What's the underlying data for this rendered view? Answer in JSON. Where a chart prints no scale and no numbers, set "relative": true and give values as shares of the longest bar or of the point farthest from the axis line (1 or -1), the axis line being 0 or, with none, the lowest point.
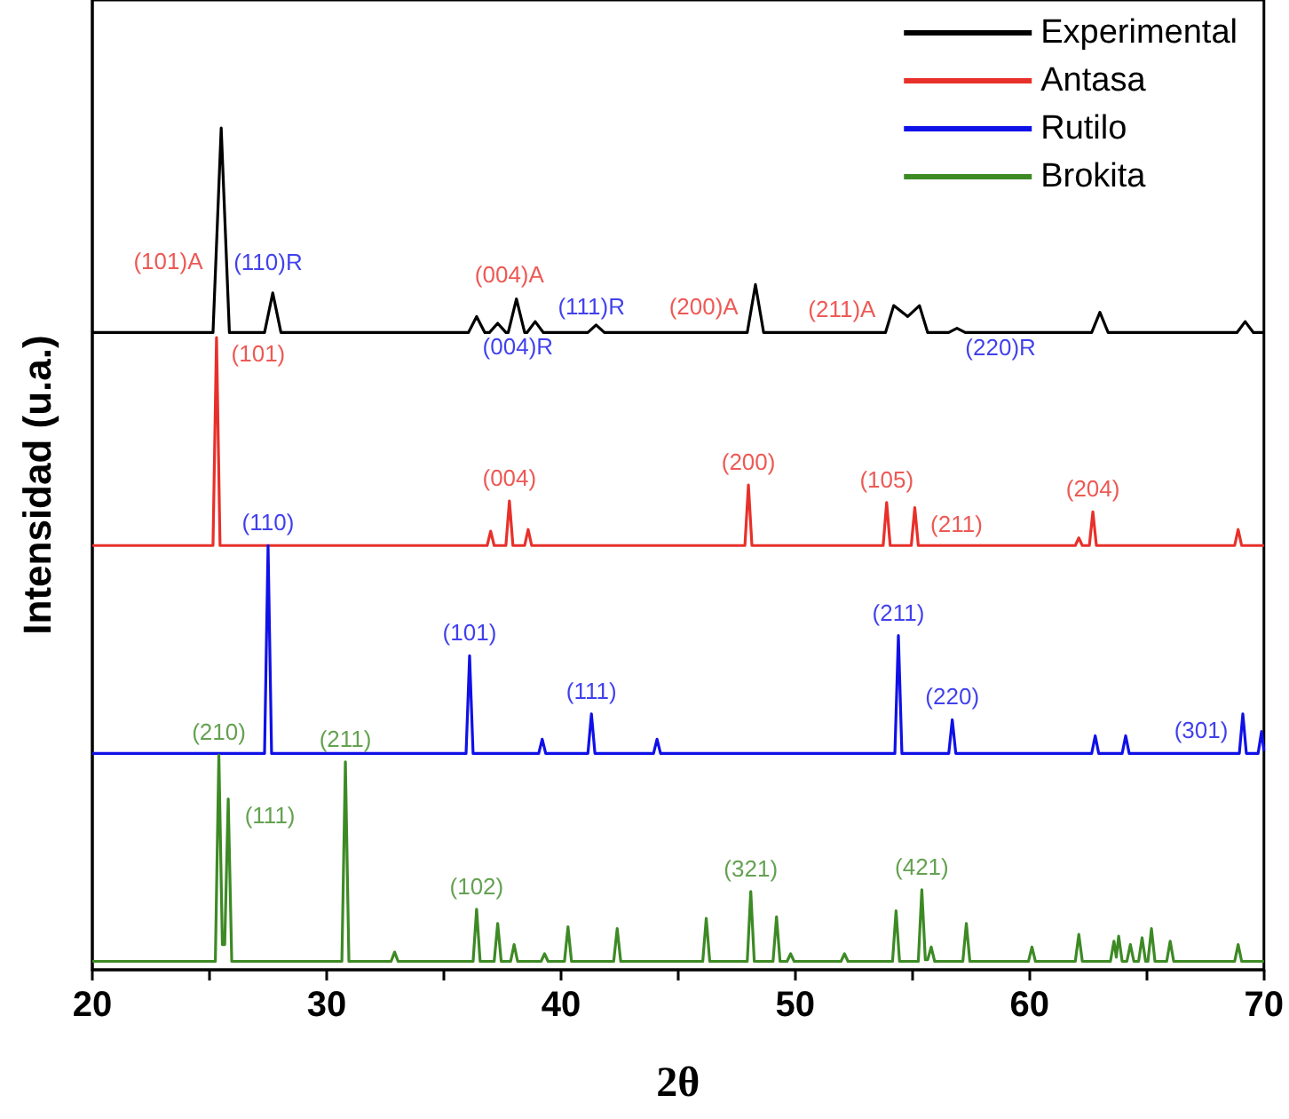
{
  "chart_data": {
    "type": "line",
    "relative": true,
    "xlabel": "2θ",
    "ylabel": "Intensidad (u.a.)",
    "xlim": [
      20,
      70
    ],
    "xticks": [
      20,
      {
        "value": 25,
        "label": null
      },
      30,
      {
        "value": 35,
        "label": null
      },
      40,
      {
        "value": 45,
        "label": null
      },
      50,
      {
        "value": 55,
        "label": null
      },
      60,
      {
        "value": 65,
        "label": null
      },
      70
    ],
    "legend": "top right",
    "grid": false,
    "marker": "none",
    "line_style": "solid",
    "series": [
      {
        "name": "Experimental",
        "color": "#000000",
        "x": [
          20,
          25.15,
          25.5,
          25.85,
          27.35,
          27.7,
          28.05,
          36.05,
          36.4,
          36.75,
          36.95,
          37.3,
          37.65,
          37.75,
          38.1,
          38.45,
          38.55,
          38.9,
          39.25,
          41.15,
          41.5,
          41.85,
          47.95,
          48.3,
          48.65,
          53.85,
          54.2,
          54.8,
          55.3,
          55.65,
          56.55,
          56.9,
          57.25,
          62.65,
          63.0,
          63.35,
          68.85,
          69.2,
          69.55,
          70
        ],
        "values": [
          0.757,
          0.757,
          1.0,
          0.757,
          0.757,
          0.804,
          0.757,
          0.757,
          0.776,
          0.757,
          0.757,
          0.768,
          0.757,
          0.757,
          0.797,
          0.757,
          0.757,
          0.77,
          0.757,
          0.757,
          0.766,
          0.757,
          0.757,
          0.814,
          0.757,
          0.757,
          0.789,
          0.776,
          0.789,
          0.757,
          0.757,
          0.762,
          0.757,
          0.757,
          0.781,
          0.757,
          0.757,
          0.77,
          0.757,
          0.757
        ]
      },
      {
        "name": "Antasa",
        "color": "#e8302a",
        "x": [
          20,
          25.15,
          25.3,
          25.45,
          36.85,
          37.0,
          37.15,
          37.65,
          37.8,
          37.95,
          38.45,
          38.6,
          38.75,
          47.85,
          48.0,
          48.15,
          53.75,
          53.9,
          54.05,
          54.95,
          55.1,
          55.25,
          61.95,
          62.1,
          62.25,
          62.55,
          62.7,
          62.85,
          68.75,
          68.9,
          69.05,
          70
        ],
        "values": [
          0.504,
          0.504,
          0.751,
          0.504,
          0.504,
          0.521,
          0.504,
          0.504,
          0.557,
          0.504,
          0.504,
          0.523,
          0.504,
          0.504,
          0.576,
          0.504,
          0.504,
          0.555,
          0.504,
          0.504,
          0.549,
          0.504,
          0.504,
          0.513,
          0.504,
          0.504,
          0.544,
          0.504,
          0.504,
          0.523,
          0.504,
          0.504
        ]
      },
      {
        "name": "Rutilo",
        "color": "#1010e8",
        "x": [
          20,
          27.35,
          27.5,
          27.65,
          35.95,
          36.1,
          36.25,
          39.05,
          39.2,
          39.35,
          41.15,
          41.3,
          41.45,
          43.95,
          44.1,
          44.25,
          54.25,
          54.4,
          54.55,
          56.55,
          56.7,
          56.85,
          62.65,
          62.8,
          62.95,
          63.95,
          64.1,
          64.25,
          68.95,
          69.1,
          69.25,
          69.75,
          69.9,
          70
        ],
        "values": [
          0.257,
          0.257,
          0.504,
          0.257,
          0.257,
          0.373,
          0.257,
          0.257,
          0.274,
          0.257,
          0.257,
          0.304,
          0.257,
          0.257,
          0.274,
          0.257,
          0.257,
          0.397,
          0.257,
          0.257,
          0.297,
          0.257,
          0.257,
          0.278,
          0.257,
          0.257,
          0.278,
          0.257,
          0.257,
          0.304,
          0.257,
          0.257,
          0.283,
          0.26
        ]
      },
      {
        "name": "Brokita",
        "color": "#3d8a25",
        "x": [
          20,
          25.25,
          25.4,
          25.55,
          25.65,
          25.8,
          25.95,
          30.65,
          30.8,
          30.95,
          32.75,
          32.9,
          33.05,
          36.25,
          36.4,
          36.55,
          37.15,
          37.3,
          37.45,
          37.85,
          38.0,
          38.15,
          39.15,
          39.3,
          39.45,
          40.15,
          40.3,
          40.45,
          42.25,
          42.4,
          42.55,
          46.05,
          46.2,
          46.35,
          47.95,
          48.1,
          48.25,
          49.05,
          49.2,
          49.35,
          49.65,
          49.8,
          49.95,
          51.95,
          52.1,
          52.25,
          54.15,
          54.3,
          54.45,
          55.25,
          55.4,
          55.55,
          55.65,
          55.8,
          55.95,
          57.15,
          57.3,
          57.45,
          59.95,
          60.1,
          60.25,
          61.95,
          62.1,
          62.25,
          63.45,
          63.6,
          63.7,
          63.8,
          63.95,
          64.15,
          64.3,
          64.45,
          64.65,
          64.8,
          64.95,
          65.05,
          65.2,
          65.35,
          65.85,
          66.0,
          66.15,
          68.75,
          68.9,
          69.05,
          70
        ],
        "values": [
          0.01,
          0.01,
          0.255,
          0.03,
          0.03,
          0.203,
          0.01,
          0.01,
          0.247,
          0.01,
          0.01,
          0.021,
          0.01,
          0.01,
          0.072,
          0.01,
          0.01,
          0.055,
          0.01,
          0.01,
          0.03,
          0.01,
          0.01,
          0.019,
          0.01,
          0.01,
          0.051,
          0.01,
          0.01,
          0.049,
          0.01,
          0.01,
          0.061,
          0.01,
          0.01,
          0.093,
          0.01,
          0.01,
          0.063,
          0.01,
          0.01,
          0.019,
          0.01,
          0.01,
          0.019,
          0.01,
          0.01,
          0.07,
          0.01,
          0.01,
          0.095,
          0.012,
          0.012,
          0.027,
          0.01,
          0.01,
          0.055,
          0.01,
          0.01,
          0.027,
          0.01,
          0.01,
          0.042,
          0.01,
          0.01,
          0.034,
          0.015,
          0.04,
          0.01,
          0.01,
          0.03,
          0.01,
          0.01,
          0.038,
          0.01,
          0.01,
          0.049,
          0.01,
          0.01,
          0.034,
          0.01,
          0.01,
          0.03,
          0.01,
          0.01
        ]
      }
    ],
    "annotations": [
      {
        "text": "(101)A",
        "x": 25.3,
        "y": 0.861
      },
      {
        "text": "(110)R",
        "x": 27.5,
        "y": 0.777
      },
      {
        "text": "(004)R",
        "x": 36.1,
        "y": 0.76
      },
      {
        "text": "(004)A",
        "x": 37.8,
        "y": 0.763
      },
      {
        "text": "(111)R",
        "x": 41.3,
        "y": 0.761
      },
      {
        "text": "(200)A",
        "x": 48.0,
        "y": 0.765
      },
      {
        "text": "(211)A",
        "x": 53.9,
        "y": 0.762
      },
      {
        "text": "(220)R",
        "x": 56.7,
        "y": 0.759
      },
      {
        "text": "(101)",
        "x": 25.3,
        "y": 0.751
      },
      {
        "text": "(004)",
        "x": 37.8,
        "y": 0.557
      },
      {
        "text": "(200)",
        "x": 48.0,
        "y": 0.576
      },
      {
        "text": "(105)",
        "x": 53.9,
        "y": 0.555
      },
      {
        "text": "(211)",
        "x": 55.1,
        "y": 0.549
      },
      {
        "text": "(204)",
        "x": 62.7,
        "y": 0.544
      },
      {
        "text": "(110)",
        "x": 27.5,
        "y": 0.504
      },
      {
        "text": "(101)",
        "x": 36.1,
        "y": 0.373
      },
      {
        "text": "(111)",
        "x": 41.3,
        "y": 0.304
      },
      {
        "text": "(211)",
        "x": 54.4,
        "y": 0.397
      },
      {
        "text": "(220)",
        "x": 56.7,
        "y": 0.297
      },
      {
        "text": "(301)",
        "x": 69.1,
        "y": 0.304
      },
      {
        "text": "(210)",
        "x": 25.4,
        "y": 0.255
      },
      {
        "text": "(111)",
        "x": 25.8,
        "y": 0.203
      },
      {
        "text": "(211)",
        "x": 30.8,
        "y": 0.247
      },
      {
        "text": "(102)",
        "x": 36.4,
        "y": 0.072
      },
      {
        "text": "(321)",
        "x": 48.1,
        "y": 0.093
      },
      {
        "text": "(421)",
        "x": 55.4,
        "y": 0.095
      }
    ]
  }
}
